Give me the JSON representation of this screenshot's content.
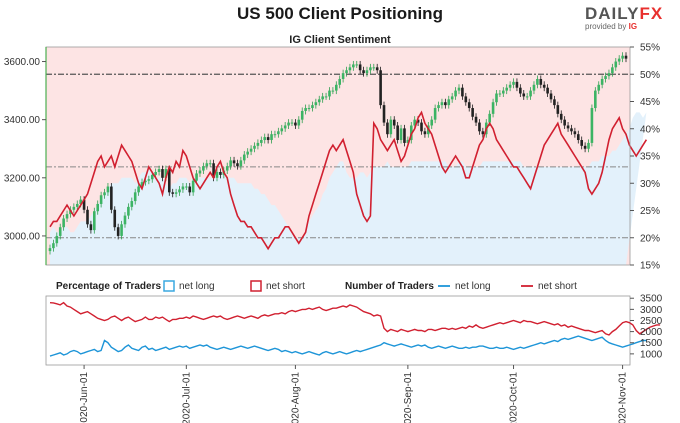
{
  "title": "US 500 Client Positioning",
  "logo": {
    "brand_a": "DAILY",
    "brand_b": "FX",
    "provided_by": "provided by",
    "ig": "IG"
  },
  "chart_data": [
    {
      "type": "line",
      "subtitle": "IG Client Sentiment",
      "price_axis": {
        "ticks": [
          "3000.00",
          "3200.00",
          "3400.00",
          "3600.00"
        ],
        "range": [
          2900,
          3650
        ]
      },
      "pct_axis": {
        "ticks": [
          "15%",
          "20%",
          "25%",
          "30%",
          "35%",
          "40%",
          "45%",
          "50%",
          "55%"
        ],
        "range": [
          15,
          55
        ]
      },
      "x_ticks": [
        "2020-Jun-01",
        "2020-Jul-01",
        "2020-Aug-01",
        "2020-Sep-01",
        "2020-Oct-01",
        "2020-Nov-01"
      ],
      "x_tick_index": [
        10,
        40,
        72,
        105,
        136,
        168
      ],
      "reference_pct": [
        50,
        33,
        20
      ],
      "price_close": [
        2958,
        2975,
        3000,
        3030,
        3060,
        3075,
        3090,
        3100,
        3110,
        3125,
        3090,
        3040,
        3020,
        3085,
        3110,
        3140,
        3150,
        3170,
        3090,
        3030,
        3000,
        3040,
        3070,
        3100,
        3120,
        3150,
        3170,
        3185,
        3190,
        3195,
        3210,
        3220,
        3230,
        3200,
        3230,
        3150,
        3145,
        3150,
        3160,
        3170,
        3170,
        3150,
        3190,
        3215,
        3225,
        3240,
        3250,
        3250,
        3200,
        3220,
        3210,
        3225,
        3240,
        3260,
        3250,
        3240,
        3260,
        3280,
        3290,
        3300,
        3310,
        3320,
        3330,
        3340,
        3330,
        3350,
        3350,
        3360,
        3370,
        3380,
        3390,
        3390,
        3380,
        3400,
        3430,
        3440,
        3440,
        3450,
        3460,
        3470,
        3480,
        3480,
        3500,
        3500,
        3520,
        3540,
        3560,
        3570,
        3580,
        3590,
        3590,
        3570,
        3560,
        3570,
        3580,
        3580,
        3570,
        3450,
        3390,
        3350,
        3400,
        3380,
        3330,
        3370,
        3320,
        3330,
        3380,
        3400,
        3390,
        3360,
        3350,
        3380,
        3400,
        3440,
        3450,
        3460,
        3450,
        3470,
        3480,
        3500,
        3510,
        3480,
        3460,
        3440,
        3410,
        3390,
        3360,
        3350,
        3390,
        3420,
        3460,
        3490,
        3490,
        3500,
        3510,
        3520,
        3530,
        3510,
        3490,
        3480,
        3480,
        3500,
        3520,
        3540,
        3520,
        3510,
        3490,
        3470,
        3450,
        3420,
        3400,
        3380,
        3370,
        3360,
        3350,
        3330,
        3310,
        3300,
        3320,
        3440,
        3500,
        3520,
        3540,
        3550,
        3560,
        3580,
        3600,
        3610,
        3620,
        3610
      ],
      "series_pct": [
        {
          "name": "net short",
          "color": "#d12030",
          "values": [
            22,
            23,
            23,
            24,
            25,
            26,
            25,
            24,
            25,
            26,
            27,
            28,
            30,
            32,
            34,
            35,
            33,
            34,
            35,
            33,
            35,
            37,
            36,
            35,
            34,
            32,
            30,
            29,
            31,
            33,
            32,
            31,
            30,
            28,
            31,
            33,
            32,
            34,
            33,
            36,
            35,
            33,
            31,
            30,
            29,
            30,
            31,
            32,
            31,
            33,
            34,
            32,
            31,
            28,
            26,
            24,
            23,
            23,
            22,
            22,
            21,
            20,
            20,
            19,
            18,
            19,
            20,
            20,
            21,
            22,
            22,
            21,
            20,
            19,
            20,
            21,
            24,
            26,
            28,
            30,
            32,
            34,
            36,
            37,
            36,
            37,
            38,
            36,
            34,
            32,
            28,
            26,
            24,
            23,
            24,
            41,
            40,
            38,
            37,
            36,
            37,
            38,
            36,
            34,
            35,
            37,
            39,
            40,
            42,
            43,
            41,
            40,
            39,
            37,
            35,
            33,
            32,
            33,
            34,
            35,
            34,
            33,
            31,
            31,
            33,
            35,
            37,
            38,
            40,
            41,
            40,
            38,
            37,
            36,
            35,
            34,
            33,
            33,
            32,
            31,
            30,
            29,
            31,
            33,
            35,
            37,
            38,
            39,
            40,
            41,
            39,
            38,
            37,
            36,
            35,
            34,
            33,
            32,
            29,
            28,
            29,
            30,
            32,
            35,
            38,
            40,
            41,
            42,
            40,
            39,
            37,
            36,
            35,
            36,
            37,
            38
          ]
        },
        {
          "name": "net long",
          "color": "#8fd0f0",
          "values": [
            21,
            22,
            21,
            21,
            22,
            22,
            21,
            21,
            22,
            23,
            23,
            23,
            24,
            25,
            26,
            27,
            28,
            29,
            30,
            30,
            30,
            31,
            31,
            31,
            31,
            30,
            31,
            32,
            32,
            33,
            32,
            31,
            31,
            31,
            30,
            29,
            30,
            30,
            31,
            31,
            31,
            30,
            31,
            31,
            31,
            31,
            31,
            31,
            31,
            32,
            32,
            32,
            31,
            31,
            31,
            30,
            30,
            30,
            30,
            30,
            29,
            29,
            28,
            28,
            27,
            26,
            26,
            25,
            24,
            23,
            22,
            21,
            20,
            20,
            20,
            21,
            23,
            24,
            25,
            26,
            28,
            29,
            31,
            32,
            33,
            34,
            34,
            32,
            31,
            31,
            31,
            32,
            32,
            31,
            32,
            33,
            33,
            33,
            33,
            34,
            33,
            33,
            33,
            33,
            33,
            33,
            34,
            34,
            34,
            34,
            34,
            34,
            34,
            34,
            34,
            34,
            34,
            33,
            33,
            33,
            34,
            34,
            33,
            33,
            33,
            33,
            33,
            34,
            34,
            34,
            34,
            34,
            34,
            34,
            34,
            34,
            34,
            34,
            34,
            33,
            33,
            33,
            33,
            33,
            33,
            33,
            33,
            33,
            33,
            33,
            33,
            33,
            33,
            33,
            33,
            33,
            33,
            33,
            33,
            34,
            34,
            34,
            35,
            35,
            35,
            36,
            36,
            37,
            38,
            39,
            40,
            42,
            43,
            43,
            42,
            43
          ]
        }
      ]
    },
    {
      "type": "line",
      "label_pct": "Percentage of Traders",
      "label_num": "Number of Traders",
      "legend": {
        "net_long": "net long",
        "net_short": "net short"
      },
      "y_ticks": [
        "1000",
        "1500",
        "2000",
        "2500",
        "3000",
        "3500"
      ],
      "range": [
        500,
        3600
      ],
      "series": [
        {
          "name": "net short",
          "color": "#d12030",
          "values": [
            3300,
            3290,
            3250,
            3200,
            3300,
            3150,
            3100,
            3000,
            2900,
            2800,
            2850,
            2900,
            2800,
            2700,
            2600,
            2550,
            2500,
            2550,
            2650,
            2700,
            2600,
            2500,
            2600,
            2650,
            2550,
            2450,
            2500,
            2550,
            2650,
            2550,
            2550,
            2650,
            2600,
            2650,
            2550,
            2450,
            2550,
            2550,
            2600,
            2600,
            2650,
            2600,
            2700,
            2650,
            2600,
            2550,
            2600,
            2650,
            2700,
            2650,
            2700,
            2600,
            2550,
            2600,
            2650,
            2700,
            2650,
            2600,
            2650,
            2700,
            2650,
            2600,
            2700,
            2750,
            2700,
            2750,
            2800,
            2800,
            2850,
            2800,
            2900,
            2950,
            2900,
            2950,
            3000,
            3000,
            3050,
            3000,
            3050,
            3100,
            3000,
            2950,
            3000,
            3050,
            3050,
            3100,
            3150,
            3100,
            3200,
            3150,
            3100,
            3000,
            2900,
            2850,
            2800,
            2700,
            2750,
            2700,
            2150,
            2000,
            2100,
            2050,
            2000,
            2100,
            2050,
            2000,
            2050,
            2100,
            2050,
            2050,
            2000,
            2100,
            2100,
            2050,
            2100,
            2150,
            2150,
            2100,
            2150,
            2100,
            2150,
            2200,
            2150,
            2250,
            2200,
            2300,
            2200,
            2150,
            2200,
            2250,
            2300,
            2350,
            2400,
            2350,
            2400,
            2450,
            2500,
            2450,
            2400,
            2500,
            2450,
            2450,
            2400,
            2350,
            2400,
            2450,
            2400,
            2350,
            2300,
            2350,
            2250,
            2300,
            2200,
            2250,
            2200,
            2150,
            2100,
            2050,
            2050,
            2000,
            1950,
            2000,
            2050,
            1900,
            1850,
            2000,
            2100,
            2250,
            2400,
            2450,
            2400,
            2300,
            2050,
            1900,
            2000,
            2100,
            2200,
            2250,
            2300,
            2300
          ]
        },
        {
          "name": "net long",
          "color": "#1e95d8",
          "values": [
            900,
            950,
            1000,
            1050,
            950,
            1000,
            1100,
            1150,
            1100,
            1000,
            1050,
            1100,
            1150,
            1200,
            1100,
            1150,
            1600,
            1500,
            1300,
            1200,
            1100,
            1150,
            1300,
            1400,
            1250,
            1200,
            1150,
            1300,
            1350,
            1200,
            1250,
            1150,
            1200,
            1250,
            1300,
            1200,
            1250,
            1300,
            1350,
            1300,
            1350,
            1250,
            1300,
            1350,
            1400,
            1350,
            1400,
            1300,
            1250,
            1200,
            1250,
            1300,
            1250,
            1200,
            1250,
            1300,
            1350,
            1300,
            1250,
            1300,
            1350,
            1300,
            1250,
            1200,
            1150,
            1200,
            1250,
            1200,
            1100,
            1150,
            1100,
            1050,
            1100,
            1050,
            1000,
            1050,
            1100,
            1050,
            1000,
            950,
            1050,
            1100,
            1050,
            1000,
            1050,
            1100,
            1050,
            1000,
            1050,
            1100,
            1150,
            1100,
            1150,
            1200,
            1250,
            1300,
            1350,
            1400,
            1500,
            1450,
            1400,
            1350,
            1400,
            1450,
            1400,
            1350,
            1300,
            1350,
            1400,
            1350,
            1400,
            1300,
            1250,
            1300,
            1350,
            1300,
            1250,
            1300,
            1350,
            1300,
            1250,
            1250,
            1300,
            1250,
            1300,
            1300,
            1350,
            1350,
            1300,
            1250,
            1250,
            1300,
            1250,
            1250,
            1300,
            1250,
            1200,
            1250,
            1300,
            1250,
            1300,
            1350,
            1400,
            1450,
            1500,
            1450,
            1500,
            1550,
            1600,
            1550,
            1650,
            1700,
            1650,
            1700,
            1750,
            1800,
            1750,
            1700,
            1650,
            1600,
            1650,
            1700,
            1750,
            1600,
            1500,
            1450,
            1400,
            1350,
            1300,
            1350,
            1400,
            1450,
            1500,
            1550,
            1600,
            1600
          ]
        }
      ]
    }
  ]
}
